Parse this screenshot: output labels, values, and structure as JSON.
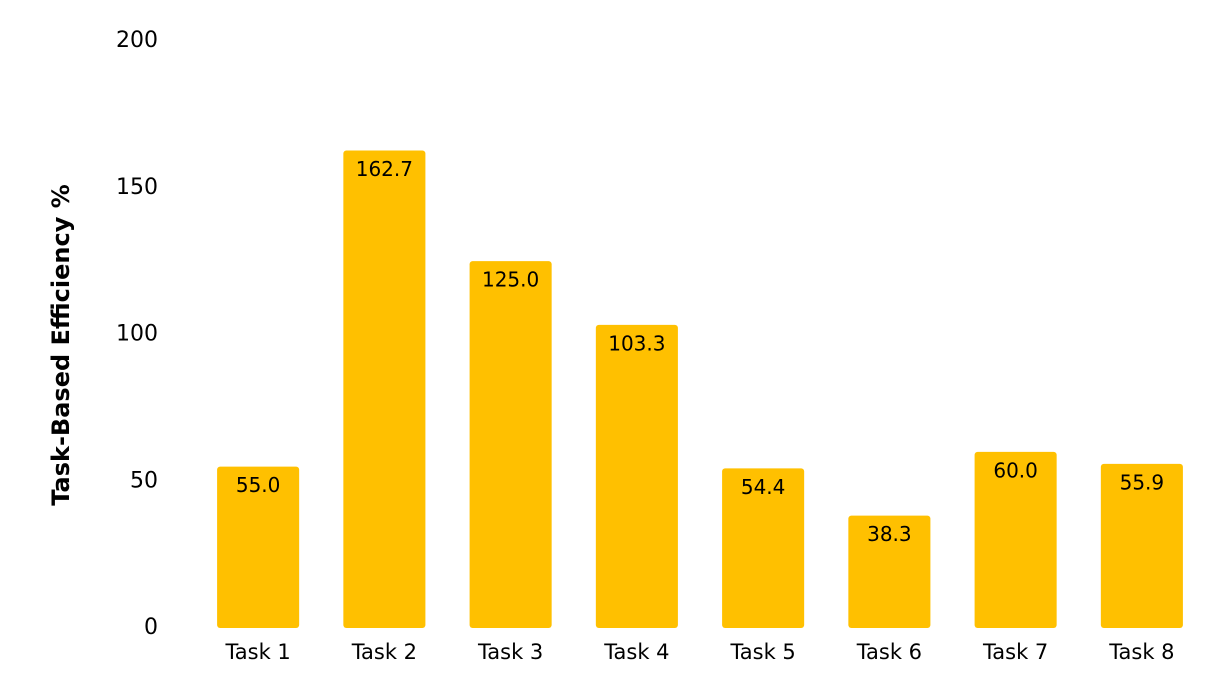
{
  "chart_data": {
    "type": "bar",
    "categories": [
      "Task 1",
      "Task 2",
      "Task 3",
      "Task 4",
      "Task 5",
      "Task 6",
      "Task 7",
      "Task 8"
    ],
    "values": [
      55.0,
      162.7,
      125.0,
      103.3,
      54.4,
      38.3,
      60.0,
      55.9
    ],
    "value_labels": [
      "55.0",
      "162.7",
      "125.0",
      "103.3",
      "54.4",
      "38.3",
      "60.0",
      "55.9"
    ],
    "ylabel": "Task-Based Efficiency %",
    "xlabel": "",
    "ylim": [
      0,
      200
    ],
    "yticks": [
      0,
      50,
      100,
      150,
      200
    ],
    "grid": false,
    "legend": "none",
    "bar_color": "#FFC000"
  }
}
